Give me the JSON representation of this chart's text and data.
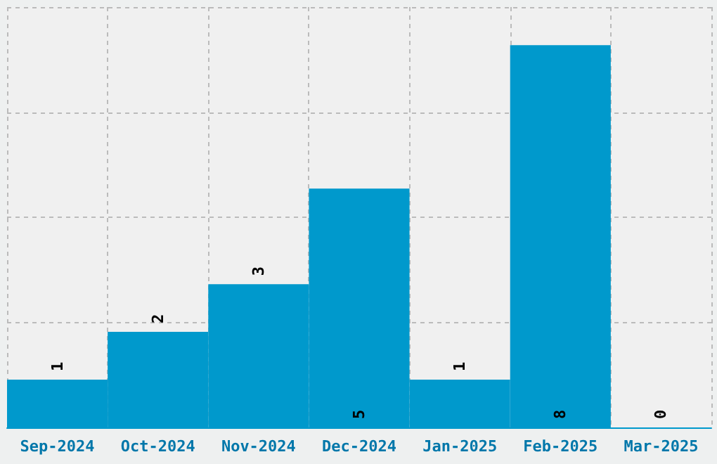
{
  "chart_data": {
    "type": "bar",
    "categories": [
      "Sep-2024",
      "Oct-2024",
      "Nov-2024",
      "Dec-2024",
      "Jan-2025",
      "Feb-2025",
      "Mar-2025"
    ],
    "values": [
      1,
      2,
      3,
      5,
      1,
      8,
      0
    ],
    "color": "#0099cc",
    "ylim": [
      0,
      8.8
    ],
    "yticks": [
      {
        "value": 0,
        "label": null
      },
      {
        "value": 2.2,
        "label": null
      },
      {
        "value": 4.4,
        "label": null
      },
      {
        "value": 6.6,
        "label": null
      },
      {
        "value": 8.8,
        "label": null
      }
    ],
    "tick_labels": "x",
    "grid": true,
    "data_labels": true
  }
}
